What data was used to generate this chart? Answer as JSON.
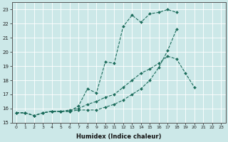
{
  "xlabel": "Humidex (Indice chaleur)",
  "bg_color": "#cce8e8",
  "grid_color": "#ffffff",
  "line_color": "#1a6b5a",
  "xlim": [
    -0.5,
    23.5
  ],
  "ylim": [
    15.0,
    23.5
  ],
  "yticks": [
    15,
    16,
    17,
    18,
    19,
    20,
    21,
    22,
    23
  ],
  "xticks": [
    0,
    1,
    2,
    3,
    4,
    5,
    6,
    7,
    8,
    9,
    10,
    11,
    12,
    13,
    14,
    15,
    16,
    17,
    18,
    19,
    20,
    21,
    22,
    23
  ],
  "line1_x": [
    0,
    1,
    2,
    3,
    4,
    5,
    6,
    7,
    8,
    9,
    10,
    11,
    12,
    13,
    14,
    15,
    16,
    17,
    18
  ],
  "line1_y": [
    15.7,
    15.7,
    15.5,
    15.7,
    15.8,
    15.8,
    15.8,
    15.9,
    15.9,
    15.9,
    16.1,
    16.3,
    16.6,
    17.0,
    17.4,
    18.0,
    18.9,
    20.1,
    21.6
  ],
  "line2_x": [
    0,
    1,
    2,
    3,
    4,
    5,
    6,
    7,
    8,
    9,
    10,
    11,
    12,
    13,
    14,
    15,
    16,
    17,
    18,
    19,
    20,
    21,
    22
  ],
  "line2_y": [
    15.7,
    15.7,
    15.5,
    15.7,
    15.8,
    15.8,
    15.8,
    16.2,
    17.4,
    17.1,
    19.3,
    19.2,
    21.8,
    22.6,
    22.1,
    22.7,
    22.8,
    23.0,
    22.8,
    null,
    null,
    null,
    null
  ],
  "line3_x": [
    0,
    1,
    2,
    3,
    4,
    5,
    6,
    7,
    8,
    9,
    10,
    11,
    12,
    13,
    14,
    15,
    16,
    17,
    18,
    19,
    20,
    21,
    22
  ],
  "line3_y": [
    15.7,
    15.7,
    15.5,
    15.7,
    15.8,
    15.8,
    15.9,
    16.0,
    16.3,
    16.5,
    16.8,
    17.0,
    17.5,
    18.0,
    18.5,
    18.8,
    19.2,
    19.7,
    19.5,
    18.5,
    17.5,
    null,
    null
  ]
}
